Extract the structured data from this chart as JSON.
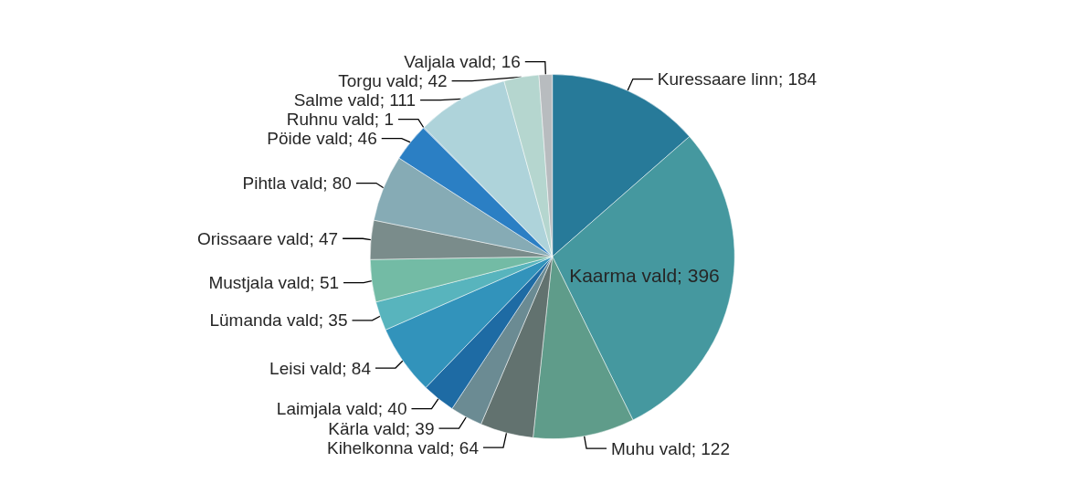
{
  "chart_data": {
    "type": "pie",
    "categories": [
      "Kuressaare linn",
      "Kaarma vald",
      "Muhu vald",
      "Kihelkonna vald",
      "Kärla vald",
      "Laimjala vald",
      "Leisi vald",
      "Lümanda vald",
      "Mustjala vald",
      "Orissaare vald",
      "Pihtla vald",
      "Pöide vald",
      "Ruhnu vald",
      "Salme vald",
      "Torgu vald",
      "Valjala vald"
    ],
    "values": [
      184,
      396,
      122,
      64,
      39,
      40,
      84,
      35,
      51,
      47,
      80,
      46,
      1,
      111,
      42,
      16
    ],
    "colors": [
      "#277a99",
      "#45989f",
      "#5f9c8a",
      "#62726f",
      "#6b8b93",
      "#1e6ba4",
      "#3293bb",
      "#58b4bd",
      "#73bba5",
      "#7a8c8b",
      "#86abb5",
      "#2b7fc4",
      "#4a90c0",
      "#aed3da",
      "#b5d6cf",
      "#b8bcbf"
    ],
    "value_labels": [
      "; 184",
      "; 396",
      "; 122",
      "; 64",
      "; 39",
      "; 40",
      "; 84",
      "; 35",
      "; 51",
      "; 47",
      "; 80",
      "; 46",
      "; 1",
      "; 111",
      "; 42",
      "; 16"
    ],
    "legend": false
  }
}
